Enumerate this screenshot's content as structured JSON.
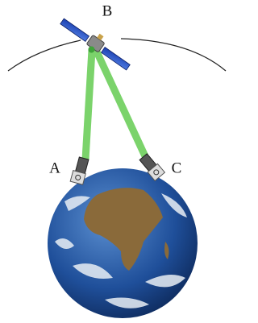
{
  "nodes": [
    {
      "label": "B"
    },
    {
      "label": "A"
    },
    {
      "label": "C"
    }
  ]
}
